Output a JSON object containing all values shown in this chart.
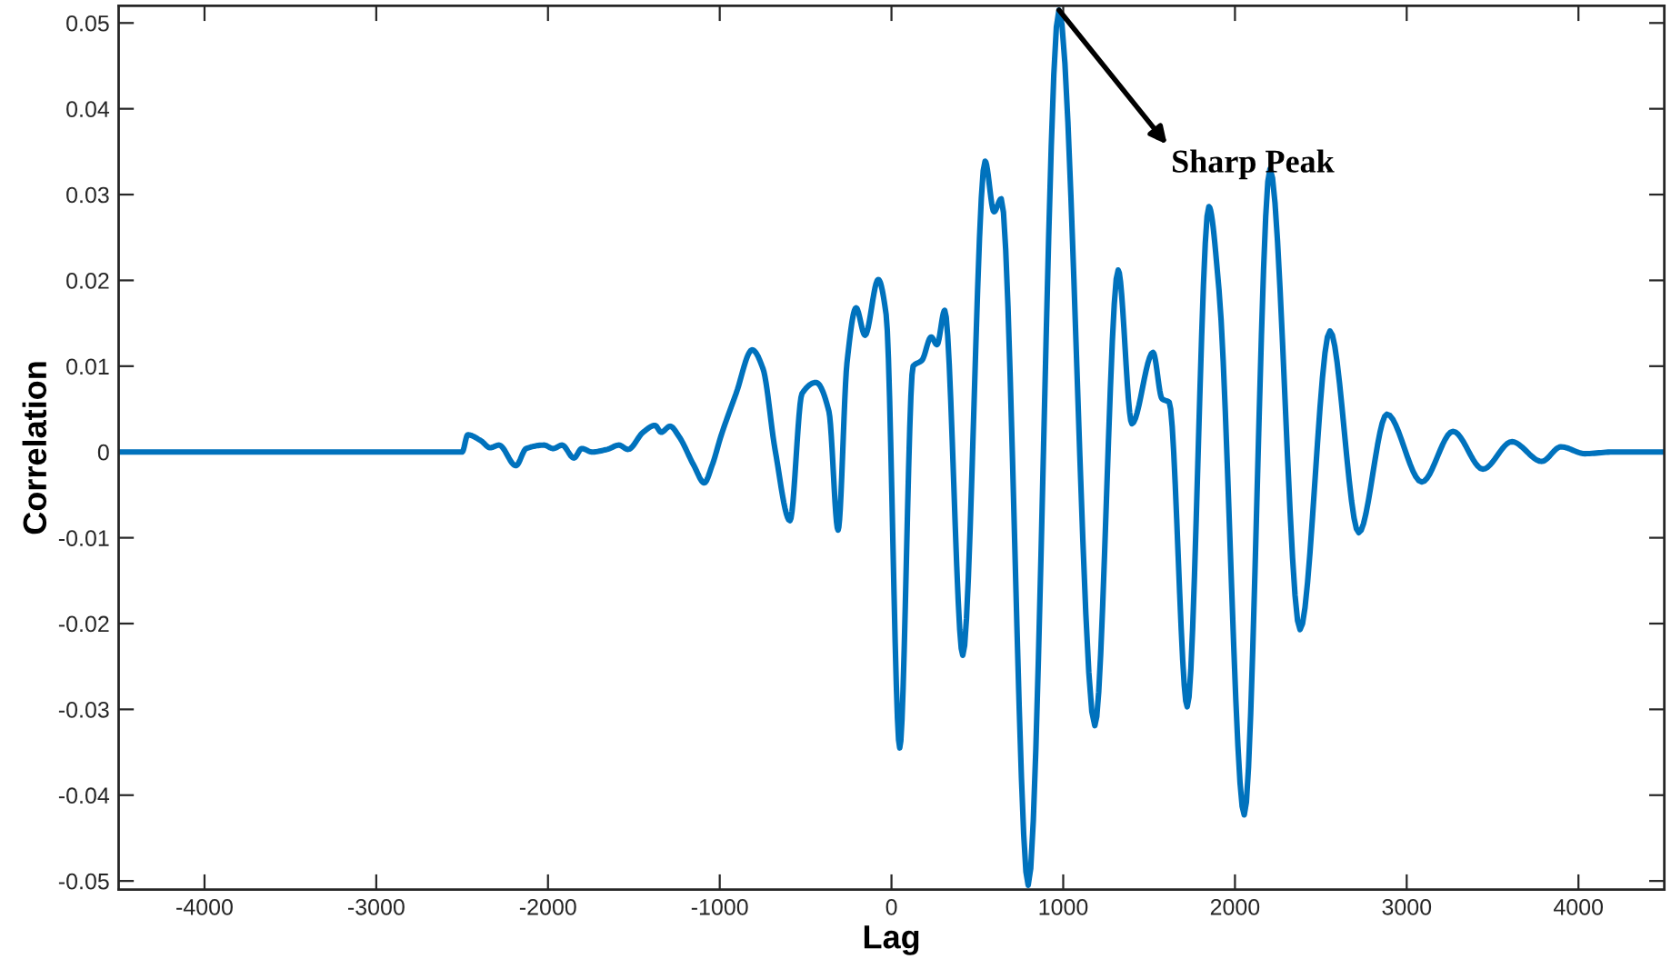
{
  "chart_data": {
    "type": "line",
    "xlabel": "Lag",
    "ylabel": "Correlation",
    "xlim": [
      -4500,
      4500
    ],
    "ylim": [
      -0.051,
      0.052
    ],
    "xticks": [
      -4000,
      -3000,
      -2000,
      -1000,
      0,
      1000,
      2000,
      3000,
      4000
    ],
    "yticks": [
      -0.05,
      -0.04,
      -0.03,
      -0.02,
      -0.01,
      0,
      0.01,
      0.02,
      0.03,
      0.04,
      0.05
    ],
    "grid": false,
    "marker": "none",
    "line_style": "solid",
    "annotations": [
      {
        "text": "Sharp Peak",
        "x": 975,
        "y": 0.0515
      }
    ],
    "series": [
      {
        "color": "#0072bd",
        "x": [
          -4500,
          -2500,
          -2467,
          -2390,
          -2337,
          -2285,
          -2187,
          -2127,
          -2023,
          -1970,
          -1918,
          -1849,
          -1803,
          -1744,
          -1656,
          -1587,
          -1534,
          -1446,
          -1377,
          -1341,
          -1289,
          -1237,
          -1150,
          -1090,
          -1045,
          -992,
          -905,
          -811,
          -748,
          -678,
          -591,
          -521,
          -440,
          -364,
          -311,
          -259,
          -206,
          -154,
          -77,
          -31,
          48,
          126,
          178,
          231,
          265,
          310,
          415,
          545,
          597,
          639,
          796,
          975,
          1184,
          1320,
          1400,
          1523,
          1575,
          1617,
          1722,
          1848,
          1907,
          2054,
          2204,
          2379,
          2553,
          2721,
          2885,
          3088,
          3270,
          3444,
          3612,
          3786,
          3898,
          4038,
          4200,
          4500
        ],
        "values": [
          0,
          0,
          0.002,
          0.0013,
          0.0005,
          0.0008,
          -0.0016,
          0.0004,
          0.0008,
          0.0004,
          0.0008,
          -0.0007,
          0.0004,
          0,
          0.0003,
          0.0008,
          0.0003,
          0.0023,
          0.0031,
          0.0023,
          0.003,
          0.0018,
          -0.0016,
          -0.0036,
          -0.0016,
          0.0019,
          0.0068,
          0.0119,
          0.0097,
          0.0003,
          -0.008,
          0.0068,
          0.0081,
          0.0047,
          -0.0091,
          0.0104,
          0.0168,
          0.0136,
          0.0201,
          0.016,
          -0.0345,
          0.01,
          0.0107,
          0.0134,
          0.0125,
          0.0165,
          -0.0237,
          0.0339,
          0.028,
          0.0295,
          -0.0505,
          0.0515,
          -0.0319,
          0.0212,
          0.0033,
          0.0116,
          0.0062,
          0.0058,
          -0.0297,
          0.0286,
          0.0189,
          -0.0423,
          0.033,
          -0.0207,
          0.0141,
          -0.0094,
          0.0044,
          -0.0035,
          0.0024,
          -0.002,
          0.0012,
          -0.0011,
          0.0006,
          -0.0002,
          0,
          0
        ]
      }
    ]
  }
}
